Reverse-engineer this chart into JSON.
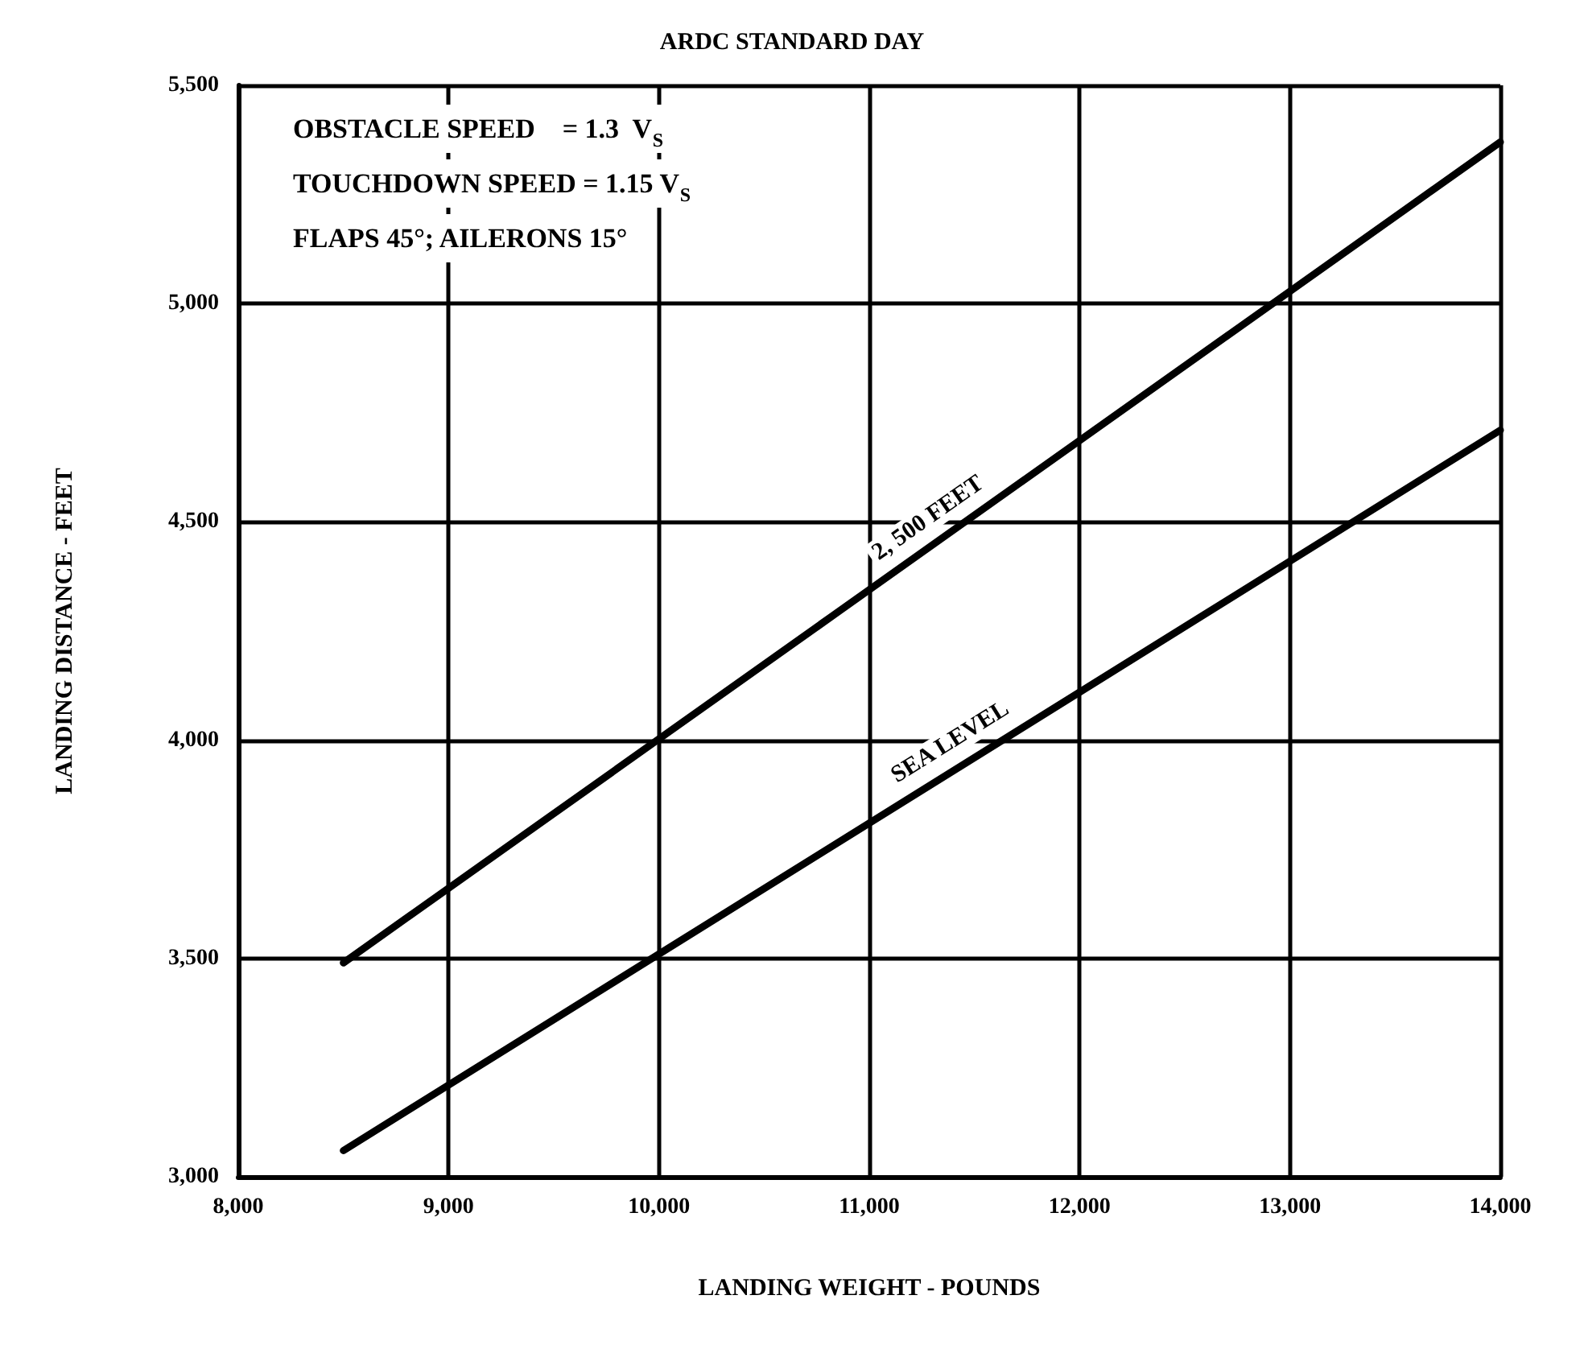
{
  "chart_data": {
    "type": "line",
    "title": "ARDC STANDARD DAY",
    "xlabel": "LANDING WEIGHT - POUNDS",
    "ylabel": "LANDING DISTANCE - FEET",
    "series": [
      {
        "color": "#000000",
        "values": [
          3490,
          5370
        ]
      },
      {
        "color": "#000000",
        "values": [
          3060,
          4710
        ]
      }
    ],
    "x": [
      8500,
      14000
    ],
    "xlim": [
      8000,
      14000
    ],
    "xticks": [
      {
        "value": 8000,
        "label": "8,000"
      },
      {
        "value": 9000,
        "label": "9,000"
      },
      {
        "value": 10000,
        "label": "10,000"
      },
      {
        "value": 11000,
        "label": "11,000"
      },
      {
        "value": 12000,
        "label": "12,000"
      },
      {
        "value": 13000,
        "label": "13,000"
      },
      {
        "value": 14000,
        "label": "14,000"
      }
    ],
    "ylim": [
      3000,
      5500
    ],
    "yticks": [
      {
        "value": 3000,
        "label": "3,000"
      },
      {
        "value": 3500,
        "label": "3,500"
      },
      {
        "value": 4000,
        "label": "4,000"
      },
      {
        "value": 4500,
        "label": "4,500"
      },
      {
        "value": 5000,
        "label": "5,000"
      },
      {
        "value": 5500,
        "label": "5,500"
      }
    ],
    "grid": true,
    "marker": "none",
    "line_style": "solid",
    "annotations": [
      "OBSTACLE SPEED    = 1.3  V$_{S}$",
      "TOUCHDOWN SPEED = 1.15 V$_{S}$",
      "FLAPS 45°; AILERONS 15°",
      {
        "text": "2, 500 FEET",
        "x": 11350,
        "y": 4460
      },
      {
        "text": "SEA LEVEL",
        "x": 11450,
        "y": 3945
      }
    ]
  }
}
